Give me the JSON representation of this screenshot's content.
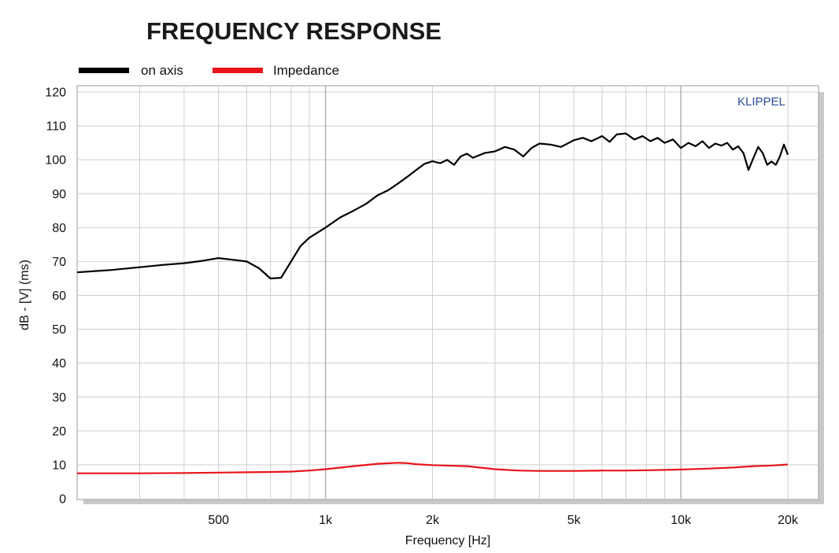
{
  "chart_data": {
    "type": "line",
    "title": "FREQUENCY RESPONSE",
    "brand": "KLIPPEL",
    "xlabel": "Frequency [Hz]",
    "ylabel": "dB - [V]  (ms)",
    "x_scale": "log",
    "xlim": [
      200,
      20000
    ],
    "ylim": [
      0,
      120
    ],
    "grid": true,
    "legend_position": "top-left",
    "x_ticks": [
      {
        "value": 500,
        "label": "500"
      },
      {
        "value": 1000,
        "label": "1k"
      },
      {
        "value": 2000,
        "label": "2k"
      },
      {
        "value": 5000,
        "label": "5k"
      },
      {
        "value": 10000,
        "label": "10k"
      },
      {
        "value": 20000,
        "label": "20k"
      }
    ],
    "y_ticks": [
      0,
      10,
      20,
      30,
      40,
      50,
      60,
      70,
      80,
      90,
      100,
      110,
      120
    ],
    "series": [
      {
        "name": "on axis",
        "color": "#000000",
        "x": [
          200,
          250,
          300,
          350,
          400,
          450,
          500,
          550,
          600,
          650,
          700,
          750,
          800,
          850,
          900,
          1000,
          1100,
          1200,
          1300,
          1400,
          1500,
          1600,
          1700,
          1800,
          1900,
          2000,
          2100,
          2200,
          2300,
          2400,
          2500,
          2600,
          2800,
          3000,
          3200,
          3400,
          3600,
          3800,
          4000,
          4300,
          4600,
          5000,
          5300,
          5600,
          6000,
          6300,
          6600,
          7000,
          7400,
          7800,
          8200,
          8600,
          9000,
          9500,
          10000,
          10500,
          11000,
          11500,
          12000,
          12500,
          13000,
          13500,
          14000,
          14500,
          15000,
          15500,
          16000,
          16500,
          17000,
          17500,
          18000,
          18500,
          19000,
          19500,
          20000
        ],
        "values": [
          66.8,
          67.5,
          68.3,
          69.0,
          69.5,
          70.2,
          71.0,
          70.5,
          70.0,
          68.0,
          65.0,
          65.2,
          70.0,
          74.5,
          77.0,
          80.0,
          83.0,
          85.0,
          87.0,
          89.5,
          91.0,
          93.0,
          95.0,
          97.0,
          98.8,
          99.6,
          99.0,
          100.0,
          98.5,
          101.0,
          101.8,
          100.6,
          102.0,
          102.5,
          103.8,
          103.0,
          101.0,
          103.5,
          104.8,
          104.5,
          103.8,
          105.8,
          106.5,
          105.5,
          107.0,
          105.3,
          107.5,
          107.8,
          106.0,
          107.0,
          105.5,
          106.5,
          105.0,
          106.0,
          103.5,
          105.0,
          104.0,
          105.5,
          103.5,
          104.8,
          104.2,
          105.0,
          103.0,
          104.0,
          102.0,
          97.0,
          100.5,
          103.8,
          102.0,
          98.5,
          99.5,
          98.5,
          101.0,
          104.5,
          101.5
        ]
      },
      {
        "name": "Impedance",
        "color": "#e8141c",
        "x": [
          200,
          300,
          400,
          500,
          600,
          700,
          800,
          900,
          1000,
          1200,
          1400,
          1600,
          1700,
          1800,
          2000,
          2500,
          3000,
          3500,
          4000,
          5000,
          6000,
          7000,
          8000,
          9000,
          10000,
          12000,
          14000,
          16000,
          18000,
          20000
        ],
        "values": [
          7.5,
          7.5,
          7.6,
          7.7,
          7.8,
          7.9,
          8.0,
          8.3,
          8.7,
          9.6,
          10.3,
          10.6,
          10.5,
          10.2,
          9.9,
          9.6,
          8.7,
          8.3,
          8.2,
          8.2,
          8.3,
          8.3,
          8.4,
          8.5,
          8.6,
          8.9,
          9.2,
          9.6,
          9.8,
          10.1
        ]
      }
    ]
  }
}
